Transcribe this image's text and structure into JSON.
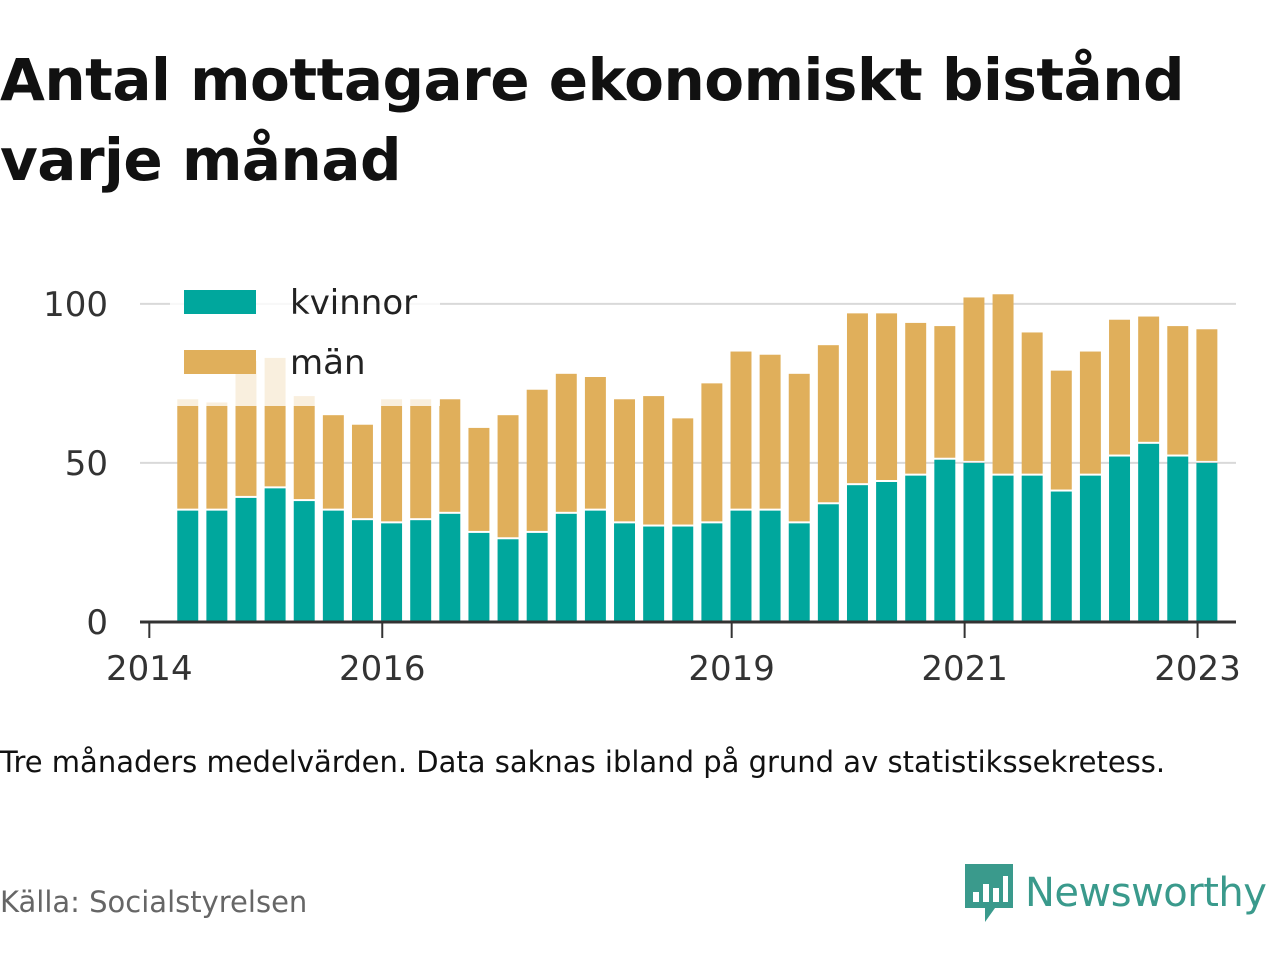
{
  "chart_data": {
    "type": "bar",
    "stacked": true,
    "title": "Antal mottagare ekonomiskt bistånd varje månad",
    "xlabel": "",
    "ylabel": "",
    "ylim": [
      0,
      110
    ],
    "yticks": [
      0,
      50,
      100
    ],
    "xlim": [
      2013.92,
      2023.33
    ],
    "xticks": [
      2014,
      2016,
      2019,
      2021,
      2023
    ],
    "xtick_labels": [
      "2014",
      "2016",
      "2019",
      "2021",
      "2023"
    ],
    "grid": true,
    "legend_placement": "top-left",
    "bar_width_years": 0.18,
    "x": [
      2014.33,
      2014.58,
      2014.83,
      2015.08,
      2015.33,
      2015.58,
      2015.83,
      2016.08,
      2016.33,
      2016.58,
      2016.83,
      2017.08,
      2017.33,
      2017.58,
      2017.83,
      2018.08,
      2018.33,
      2018.58,
      2018.83,
      2019.08,
      2019.33,
      2019.58,
      2019.83,
      2020.08,
      2020.33,
      2020.58,
      2020.83,
      2021.08,
      2021.33,
      2021.58,
      2021.83,
      2022.08,
      2022.33,
      2022.58,
      2022.83,
      2023.08
    ],
    "series": [
      {
        "name": "kvinnor",
        "color": "#00a79d",
        "values": [
          35,
          35,
          39,
          42,
          38,
          35,
          32,
          31,
          32,
          34,
          28,
          26,
          28,
          34,
          35,
          31,
          30,
          30,
          31,
          35,
          35,
          31,
          37,
          43,
          44,
          46,
          51,
          50,
          46,
          46,
          41,
          46,
          52,
          56,
          52,
          50
        ]
      },
      {
        "name": "män",
        "color": "#e0af5b",
        "values": [
          35,
          34,
          43,
          41,
          33,
          30,
          30,
          39,
          38,
          36,
          33,
          39,
          45,
          44,
          42,
          39,
          41,
          34,
          44,
          50,
          49,
          47,
          50,
          54,
          53,
          48,
          42,
          52,
          57,
          45,
          38,
          39,
          43,
          40,
          41,
          42
        ]
      }
    ]
  },
  "footer": {
    "note": "Tre månaders medelvärden. Data saknas ibland på grund av statistikssekretess.",
    "source": "Källa: Socialstyrelsen",
    "brand": "Newsworthy",
    "brand_color": "#3a9a8c"
  }
}
